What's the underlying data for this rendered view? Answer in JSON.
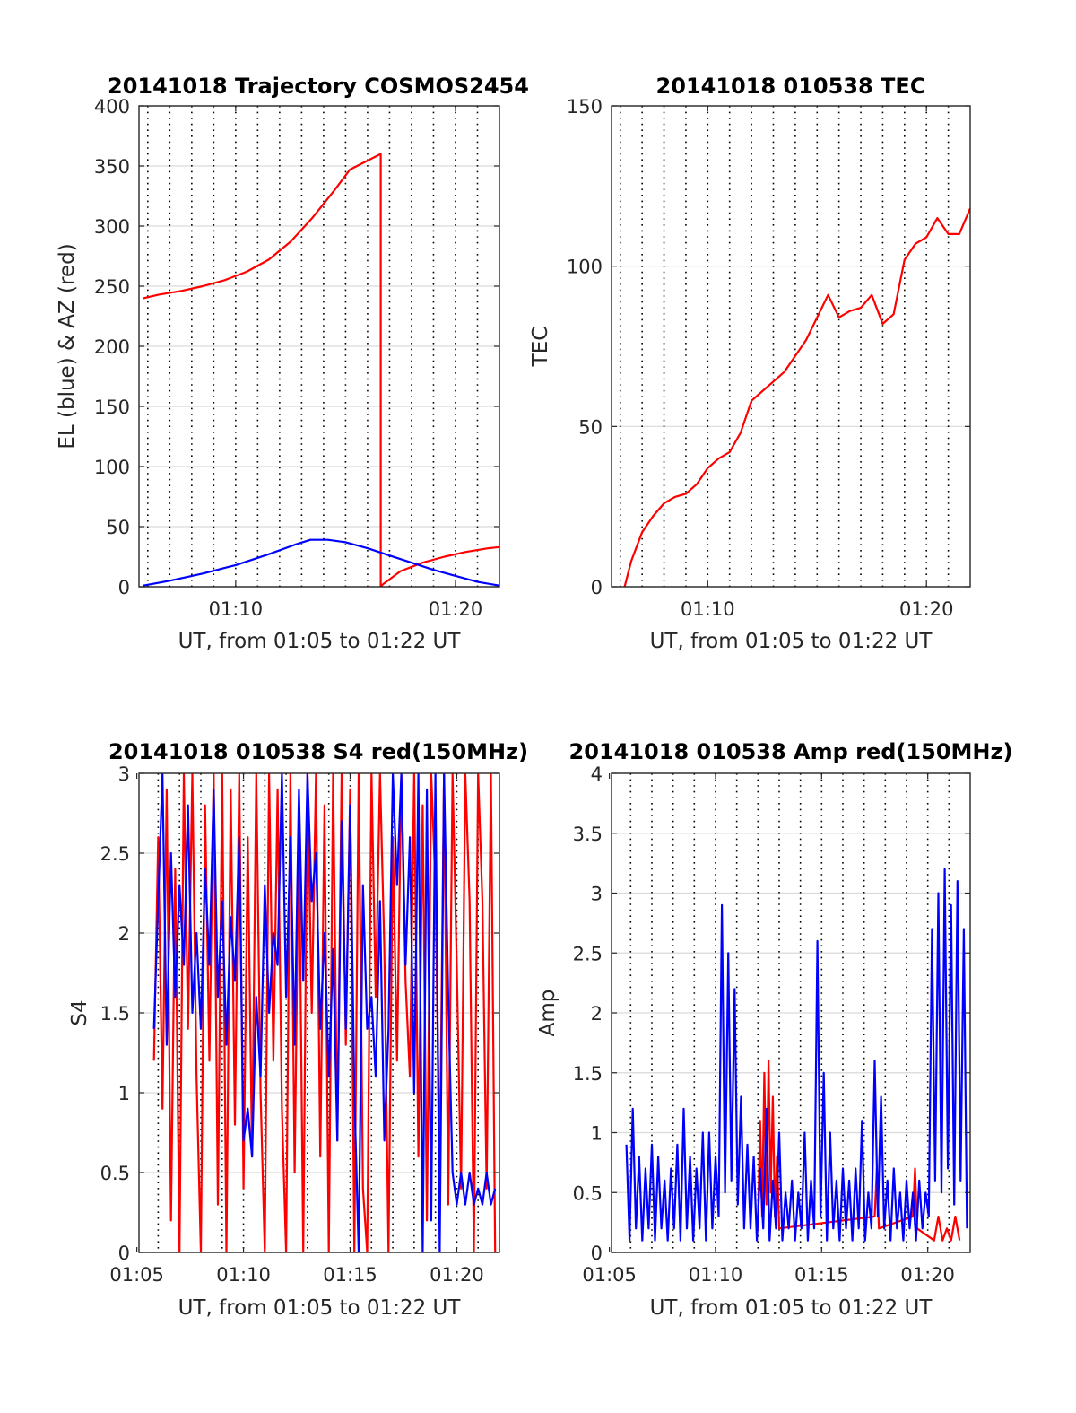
{
  "colors": {
    "red": "#ff0000",
    "blue": "#0000ff",
    "axis": "#262626",
    "grid": "#d9d9d9"
  },
  "chart_data": [
    {
      "id": "trajectory",
      "type": "line",
      "title": "20141018 Trajectory COSMOS2454",
      "xlabel": "UT, from 01:05 to 01:22 UT",
      "ylabel": "EL (blue) & AZ (red)",
      "xlim": [
        5.6,
        22.0
      ],
      "ylim": [
        0,
        400
      ],
      "x_unit": "minutes after 01:00",
      "xticks": [
        {
          "value": 10,
          "label": "01:10"
        },
        {
          "value": 20,
          "label": "01:20"
        }
      ],
      "yticks": [
        {
          "value": 0,
          "label": "0"
        },
        {
          "value": 50,
          "label": "50"
        },
        {
          "value": 100,
          "label": "100"
        },
        {
          "value": 150,
          "label": "150"
        },
        {
          "value": 200,
          "label": "200"
        },
        {
          "value": 250,
          "label": "250"
        },
        {
          "value": 300,
          "label": "300"
        },
        {
          "value": 350,
          "label": "350"
        },
        {
          "value": 400,
          "label": "400"
        }
      ],
      "grid": true,
      "series": [
        {
          "color": "#ff0000",
          "x": [
            5.8,
            6.5,
            7.5,
            8.5,
            9.5,
            10.5,
            11.5,
            12.5,
            13.5,
            14.5,
            15.2,
            16.6,
            16.6,
            16.7,
            17.5,
            18.5,
            19.5,
            20.5,
            21.5,
            22.0
          ],
          "y": [
            240,
            243,
            246,
            250,
            255,
            262,
            272,
            287,
            307,
            330,
            347,
            360,
            0,
            2,
            13,
            20,
            25,
            29,
            32,
            33
          ]
        },
        {
          "color": "#0000ff",
          "x": [
            5.8,
            7,
            8.5,
            10,
            11.5,
            12.7,
            13.4,
            14.2,
            15,
            16,
            17,
            18,
            19,
            20,
            21,
            22.0
          ],
          "y": [
            1,
            5,
            11,
            18,
            27,
            35,
            39,
            39,
            37,
            32,
            26,
            20,
            14,
            9,
            4,
            1
          ]
        }
      ]
    },
    {
      "id": "tec",
      "type": "line",
      "title": "20141018 010538 TEC",
      "xlabel": "UT, from 01:05 to 01:22 UT",
      "ylabel": "TEC",
      "xlim": [
        5.6,
        22.0
      ],
      "ylim": [
        0,
        150
      ],
      "x_unit": "minutes after 01:00",
      "xticks": [
        {
          "value": 10,
          "label": "01:10"
        },
        {
          "value": 20,
          "label": "01:20"
        }
      ],
      "yticks": [
        {
          "value": 0,
          "label": "0"
        },
        {
          "value": 50,
          "label": "50"
        },
        {
          "value": 100,
          "label": "100"
        },
        {
          "value": 150,
          "label": "150"
        }
      ],
      "grid": true,
      "series": [
        {
          "color": "#ff0000",
          "x": [
            6.2,
            6.5,
            7,
            7.5,
            8,
            8.5,
            9,
            9.5,
            10,
            10.5,
            11,
            11.5,
            12,
            12.5,
            13,
            13.5,
            14,
            14.5,
            15,
            15.5,
            16,
            16.5,
            17,
            17.5,
            18,
            18.5,
            19,
            19.5,
            20,
            20.5,
            21,
            21.5,
            22
          ],
          "y": [
            0,
            8,
            17,
            22,
            26,
            28,
            29,
            32,
            37,
            40,
            42,
            48,
            58,
            61,
            64,
            67,
            72,
            77,
            84,
            91,
            84,
            86,
            87,
            91,
            82,
            85,
            102,
            107,
            109,
            115,
            110,
            110,
            118
          ]
        }
      ]
    },
    {
      "id": "s4",
      "type": "line",
      "title": "20141018 010538 S4 red(150MHz)",
      "xlabel": "UT, from 01:05 to 01:22 UT",
      "ylabel": "S4",
      "xlim": [
        5.1,
        22.0
      ],
      "ylim": [
        0,
        3
      ],
      "x_unit": "minutes after 01:00",
      "xticks": [
        {
          "value": 5,
          "label": "01:05"
        },
        {
          "value": 10,
          "label": "01:10"
        },
        {
          "value": 15,
          "label": "01:15"
        },
        {
          "value": 20,
          "label": "01:20"
        }
      ],
      "yticks": [
        {
          "value": 0,
          "label": "0"
        },
        {
          "value": 0.5,
          "label": "0.5"
        },
        {
          "value": 1,
          "label": "1"
        },
        {
          "value": 1.5,
          "label": "1.5"
        },
        {
          "value": 2,
          "label": "2"
        },
        {
          "value": 2.5,
          "label": "2.5"
        },
        {
          "value": 3,
          "label": "3"
        }
      ],
      "grid": true,
      "series": [
        {
          "color": "#ff0000",
          "x": [
            5.8,
            6.0,
            6.2,
            6.4,
            6.6,
            6.8,
            7.0,
            7.2,
            7.4,
            7.6,
            7.8,
            8.0,
            8.2,
            8.4,
            8.6,
            8.8,
            9.0,
            9.2,
            9.4,
            9.6,
            9.8,
            10.0,
            10.2,
            10.4,
            10.6,
            10.8,
            11.0,
            11.2,
            11.4,
            11.6,
            11.8,
            12.0,
            12.2,
            12.4,
            12.6,
            12.8,
            13.0,
            13.2,
            13.4,
            13.6,
            13.8,
            14.0,
            14.2,
            14.4,
            14.6,
            14.8,
            15.0,
            15.2,
            15.4,
            15.6,
            15.8,
            16.0,
            16.2,
            16.4,
            16.6,
            16.8,
            17.0,
            17.2,
            17.4,
            17.6,
            17.8,
            18.0,
            18.2,
            18.4,
            18.6,
            18.8,
            19.0,
            19.2,
            19.4,
            19.6,
            19.8,
            20.0,
            20.2,
            20.4,
            20.6,
            20.8,
            21.0,
            21.2,
            21.4,
            21.6,
            21.8
          ],
          "y": [
            1.2,
            2.6,
            0.9,
            2.9,
            0.2,
            2.4,
            0.0,
            3.0,
            1.4,
            3.0,
            1.1,
            0.0,
            2.8,
            1.2,
            3.0,
            0.3,
            3.0,
            0.0,
            2.9,
            0.8,
            3.0,
            0.4,
            2.6,
            0.6,
            3.0,
            1.0,
            0.0,
            3.0,
            1.2,
            2.9,
            0.9,
            0.0,
            3.0,
            0.5,
            2.7,
            0.0,
            3.0,
            1.5,
            3.0,
            0.6,
            2.8,
            0.0,
            3.0,
            0.7,
            3.0,
            1.3,
            2.9,
            0.0,
            3.0,
            0.4,
            0.0,
            3.0,
            1.6,
            3.0,
            1.9,
            0.0,
            2.6,
            1.2,
            3.0,
            1.7,
            1.1,
            3.0,
            0.6,
            2.8,
            0.2,
            3.0,
            2.3,
            0.5,
            3.0,
            0.3,
            3.0,
            1.8,
            0.4,
            3.0,
            2.2,
            0.0,
            3.0,
            2.2,
            0.4,
            3.0,
            0.0
          ]
        },
        {
          "color": "#0000ff",
          "x": [
            5.8,
            6.0,
            6.2,
            6.4,
            6.6,
            6.8,
            7.0,
            7.2,
            7.4,
            7.6,
            7.8,
            8.0,
            8.2,
            8.4,
            8.6,
            8.8,
            9.0,
            9.2,
            9.4,
            9.6,
            9.8,
            10.0,
            10.2,
            10.4,
            10.6,
            10.8,
            11.0,
            11.2,
            11.4,
            11.6,
            11.8,
            12.0,
            12.2,
            12.4,
            12.6,
            12.8,
            13.0,
            13.2,
            13.4,
            13.6,
            13.8,
            14.0,
            14.2,
            14.4,
            14.6,
            14.8,
            15.0,
            15.2,
            15.4,
            15.6,
            15.8,
            16.0,
            16.2,
            16.4,
            16.6,
            16.8,
            17.0,
            17.2,
            17.4,
            17.6,
            17.8,
            18.0,
            18.2,
            18.4,
            18.6,
            18.8,
            19.0,
            19.2,
            19.4,
            19.6,
            19.8,
            20.0,
            20.2,
            20.4,
            20.6,
            20.8,
            21.0,
            21.2,
            21.4,
            21.6,
            21.8
          ],
          "y": [
            1.4,
            2.2,
            3.0,
            1.3,
            2.5,
            1.6,
            2.3,
            1.8,
            2.8,
            1.5,
            2.0,
            1.4,
            2.4,
            1.8,
            2.9,
            1.6,
            2.2,
            1.3,
            2.1,
            1.7,
            2.6,
            0.7,
            0.9,
            0.6,
            1.6,
            1.1,
            2.3,
            1.5,
            2.0,
            1.8,
            3.0,
            1.6,
            2.6,
            1.3,
            2.9,
            1.7,
            3.0,
            2.2,
            2.5,
            1.4,
            2.0,
            1.1,
            1.9,
            0.7,
            2.7,
            1.4,
            2.8,
            1.0,
            0.0,
            2.3,
            1.4,
            1.6,
            1.1,
            2.2,
            0.7,
            1.4,
            3.0,
            2.3,
            3.0,
            1.8,
            2.6,
            1.0,
            3.0,
            0.0,
            2.9,
            0.2,
            3.0,
            0.0,
            3.0,
            1.6,
            0.5,
            0.3,
            0.5,
            0.3,
            0.5,
            0.3,
            0.4,
            0.3,
            0.5,
            0.3,
            0.4
          ]
        }
      ]
    },
    {
      "id": "amp",
      "type": "line",
      "title": "20141018 010538 Amp red(150MHz)",
      "xlabel": "UT, from 01:05 to 01:22 UT",
      "ylabel": "Amp",
      "xlim": [
        5.1,
        22.0
      ],
      "ylim": [
        0,
        4
      ],
      "x_unit": "minutes after 01:00",
      "xticks": [
        {
          "value": 5,
          "label": "01:05"
        },
        {
          "value": 10,
          "label": "01:10"
        },
        {
          "value": 15,
          "label": "01:15"
        },
        {
          "value": 20,
          "label": "01:20"
        }
      ],
      "yticks": [
        {
          "value": 0,
          "label": "0"
        },
        {
          "value": 0.5,
          "label": "0.5"
        },
        {
          "value": 1,
          "label": "1"
        },
        {
          "value": 1.5,
          "label": "1.5"
        },
        {
          "value": 2,
          "label": "2"
        },
        {
          "value": 2.5,
          "label": "2.5"
        },
        {
          "value": 3,
          "label": "3"
        },
        {
          "value": 3.5,
          "label": "3.5"
        },
        {
          "value": 4,
          "label": "4"
        }
      ],
      "grid": true,
      "series": [
        {
          "color": "#ff0000",
          "x": [
            12.0,
            12.1,
            12.2,
            12.3,
            12.4,
            12.5,
            12.6,
            12.7,
            12.8,
            12.9,
            13.0,
            17.5,
            17.6,
            17.7,
            19.3,
            19.4,
            19.5,
            20.3,
            20.5,
            20.7,
            20.9,
            21.1,
            21.3,
            21.5
          ],
          "y": [
            0.2,
            1.1,
            0.3,
            1.5,
            0.4,
            1.6,
            0.5,
            1.3,
            0.3,
            0.8,
            0.2,
            0.3,
            0.7,
            0.2,
            0.3,
            0.7,
            0.2,
            0.1,
            0.3,
            0.1,
            0.2,
            0.1,
            0.3,
            0.1
          ]
        },
        {
          "color": "#0000ff",
          "x": [
            5.8,
            5.95,
            6.1,
            6.25,
            6.4,
            6.55,
            6.7,
            6.85,
            7.0,
            7.15,
            7.3,
            7.45,
            7.6,
            7.75,
            7.9,
            8.05,
            8.2,
            8.35,
            8.5,
            8.65,
            8.8,
            8.95,
            9.1,
            9.25,
            9.4,
            9.55,
            9.7,
            9.85,
            10.0,
            10.15,
            10.3,
            10.45,
            10.6,
            10.75,
            10.9,
            11.05,
            11.2,
            11.35,
            11.5,
            11.65,
            11.8,
            11.95,
            12.1,
            12.25,
            12.4,
            12.55,
            12.7,
            12.85,
            13.0,
            13.15,
            13.3,
            13.45,
            13.6,
            13.75,
            13.9,
            14.05,
            14.2,
            14.35,
            14.5,
            14.65,
            14.8,
            14.95,
            15.1,
            15.25,
            15.4,
            15.55,
            15.7,
            15.85,
            16.0,
            16.15,
            16.3,
            16.45,
            16.6,
            16.75,
            16.9,
            17.05,
            17.2,
            17.35,
            17.5,
            17.65,
            17.8,
            17.95,
            18.1,
            18.25,
            18.4,
            18.55,
            18.7,
            18.85,
            19.0,
            19.15,
            19.3,
            19.45,
            19.6,
            19.75,
            19.9,
            20.05,
            20.2,
            20.35,
            20.5,
            20.65,
            20.8,
            20.95,
            21.1,
            21.25,
            21.4,
            21.55,
            21.7,
            21.85
          ],
          "y": [
            0.9,
            0.1,
            1.2,
            0.2,
            0.8,
            0.1,
            0.7,
            0.2,
            0.9,
            0.1,
            0.8,
            0.2,
            0.6,
            0.1,
            0.7,
            0.2,
            0.9,
            0.1,
            1.2,
            0.2,
            0.8,
            0.1,
            0.7,
            0.2,
            1.0,
            0.1,
            1.0,
            0.2,
            0.8,
            0.3,
            2.9,
            0.5,
            2.5,
            0.6,
            2.2,
            0.4,
            1.3,
            0.2,
            0.9,
            0.2,
            0.8,
            0.1,
            0.7,
            0.2,
            1.2,
            0.1,
            0.6,
            0.2,
            1.0,
            0.1,
            0.5,
            0.2,
            0.6,
            0.1,
            0.5,
            0.2,
            1.0,
            0.1,
            0.6,
            0.2,
            2.6,
            0.3,
            1.5,
            0.1,
            1.0,
            0.2,
            0.6,
            0.1,
            0.7,
            0.2,
            0.6,
            0.1,
            0.7,
            0.2,
            1.1,
            0.1,
            0.5,
            0.2,
            1.6,
            0.3,
            1.3,
            0.2,
            0.6,
            0.1,
            0.7,
            0.2,
            0.5,
            0.1,
            0.6,
            0.2,
            0.5,
            0.1,
            0.6,
            0.2,
            0.5,
            0.3,
            2.7,
            0.6,
            3.0,
            0.5,
            3.2,
            0.7,
            2.9,
            0.4,
            3.1,
            0.6,
            2.7,
            0.2
          ]
        }
      ]
    }
  ]
}
